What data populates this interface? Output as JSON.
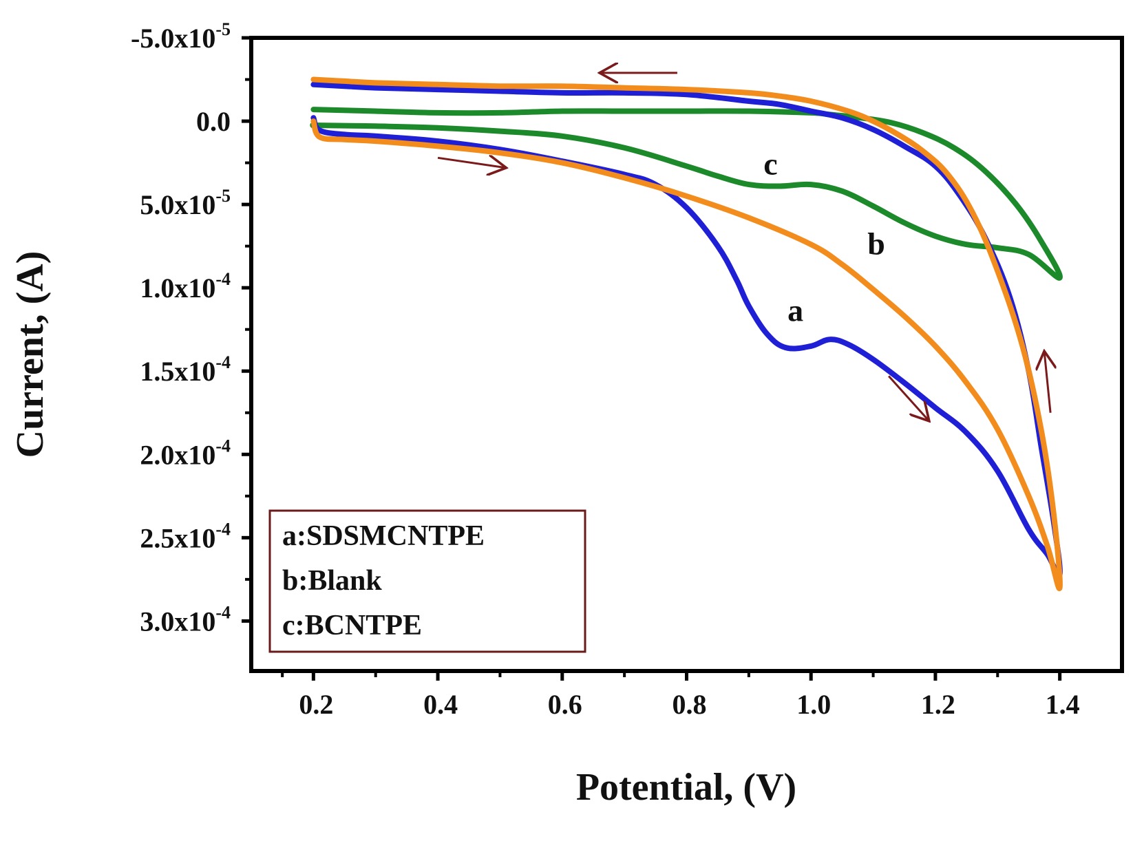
{
  "chart_data": {
    "type": "line",
    "title": "",
    "xlabel": "Potential, (V)",
    "ylabel": "Current, (A)",
    "xlim": [
      0.1,
      1.5
    ],
    "ylim": [
      -5e-05,
      0.00033
    ],
    "y_inverted": true,
    "x_ticks": [
      {
        "value": 0.2,
        "label": "0.2"
      },
      {
        "value": 0.4,
        "label": "0.4"
      },
      {
        "value": 0.6,
        "label": "0.6"
      },
      {
        "value": 0.8,
        "label": "0.8"
      },
      {
        "value": 1.0,
        "label": "1.0"
      },
      {
        "value": 1.2,
        "label": "1.2"
      },
      {
        "value": 1.4,
        "label": "1.4"
      }
    ],
    "y_ticks": [
      {
        "value": -5e-05,
        "mant": "-5.0x10",
        "exp": "-5"
      },
      {
        "value": 0.0,
        "mant": "0.0",
        "exp": ""
      },
      {
        "value": 5e-05,
        "mant": "5.0x10",
        "exp": "-5"
      },
      {
        "value": 0.0001,
        "mant": "1.0x10",
        "exp": "-4"
      },
      {
        "value": 0.00015,
        "mant": "1.5x10",
        "exp": "-4"
      },
      {
        "value": 0.0002,
        "mant": "2.0x10",
        "exp": "-4"
      },
      {
        "value": 0.00025,
        "mant": "2.5x10",
        "exp": "-4"
      },
      {
        "value": 0.0003,
        "mant": "3.0x10",
        "exp": "-4"
      }
    ],
    "series": [
      {
        "name": "a:SDSMCNTPE",
        "label": "a",
        "color": "#1f1fd6",
        "label_point": {
          "x": 0.975,
          "y": 0.00012
        },
        "x": [
          0.2,
          0.21,
          0.25,
          0.3,
          0.4,
          0.5,
          0.6,
          0.7,
          0.75,
          0.8,
          0.85,
          0.88,
          0.9,
          0.93,
          0.96,
          1.0,
          1.03,
          1.06,
          1.1,
          1.15,
          1.2,
          1.25,
          1.3,
          1.35,
          1.38,
          1.4,
          1.39,
          1.37,
          1.35,
          1.32,
          1.28,
          1.24,
          1.2,
          1.15,
          1.1,
          1.05,
          1.0,
          0.95,
          0.9,
          0.8,
          0.7,
          0.6,
          0.5,
          0.4,
          0.3,
          0.25,
          0.2
        ],
        "y": [
          -2e-06,
          5.5e-06,
          8e-06,
          9e-06,
          1.2e-05,
          1.7e-05,
          2.4e-05,
          3.2e-05,
          3.8e-05,
          5.2e-05,
          7.5e-05,
          9.5e-05,
          0.000111,
          0.000128,
          0.000136,
          0.000135,
          0.000131,
          0.000134,
          0.000143,
          0.000157,
          0.000172,
          0.000187,
          0.00021,
          0.000245,
          0.00026,
          0.000272,
          0.00024,
          0.000195,
          0.00015,
          0.000106,
          7e-05,
          4.5e-05,
          2.7e-05,
          1.5e-05,
          5e-06,
          -2e-06,
          -6e-06,
          -1e-05,
          -1.2e-05,
          -1.6e-05,
          -1.7e-05,
          -1.7e-05,
          -1.8e-05,
          -1.9e-05,
          -2e-05,
          -2.1e-05,
          -2.2e-05
        ]
      },
      {
        "name": "b:Blank",
        "label": "b",
        "color": "#f28c1c",
        "label_point": {
          "x": 1.105,
          "y": 8e-05
        },
        "x": [
          0.2,
          0.21,
          0.25,
          0.3,
          0.4,
          0.5,
          0.6,
          0.7,
          0.8,
          0.9,
          1.0,
          1.05,
          1.1,
          1.15,
          1.2,
          1.25,
          1.3,
          1.35,
          1.38,
          1.4,
          1.39,
          1.37,
          1.34,
          1.3,
          1.26,
          1.22,
          1.18,
          1.14,
          1.1,
          1.06,
          1.0,
          0.95,
          0.9,
          0.8,
          0.7,
          0.6,
          0.5,
          0.4,
          0.3,
          0.25,
          0.2
        ],
        "y": [
          0.0,
          9.5e-06,
          1.1e-05,
          1.2e-05,
          1.5e-05,
          1.9e-05,
          2.5e-05,
          3.4e-05,
          4.5e-05,
          5.8e-05,
          7.4e-05,
          8.6e-05,
          0.000101,
          0.000117,
          0.000135,
          0.000157,
          0.000185,
          0.000225,
          0.000255,
          0.00028,
          0.000235,
          0.000185,
          0.000135,
          9e-05,
          5.5e-05,
          3.2e-05,
          1.8e-05,
          8e-06,
          0.0,
          -6e-06,
          -1.2e-05,
          -1.5e-05,
          -1.7e-05,
          -1.9e-05,
          -2e-05,
          -2.1e-05,
          -2.1e-05,
          -2.2e-05,
          -2.3e-05,
          -2.4e-05,
          -2.5e-05
        ]
      },
      {
        "name": "c:BCNTPE",
        "label": "c",
        "color": "#1c8a2a",
        "label_point": {
          "x": 0.935,
          "y": 3.2e-05
        },
        "x": [
          0.2,
          0.21,
          0.3,
          0.4,
          0.5,
          0.6,
          0.7,
          0.8,
          0.85,
          0.9,
          0.95,
          1.0,
          1.05,
          1.1,
          1.15,
          1.2,
          1.25,
          1.3,
          1.35,
          1.4,
          1.37,
          1.33,
          1.28,
          1.23,
          1.18,
          1.13,
          1.08,
          1.03,
          1.0,
          0.9,
          0.8,
          0.7,
          0.6,
          0.5,
          0.4,
          0.3,
          0.2
        ],
        "y": [
          2.5e-06,
          2.5e-06,
          3e-06,
          4e-06,
          6e-06,
          9e-06,
          1.6e-05,
          2.7e-05,
          3.3e-05,
          3.8e-05,
          3.9e-05,
          3.8e-05,
          4.2e-05,
          5.1e-05,
          6.1e-05,
          6.9e-05,
          7.4e-05,
          7.6e-05,
          8e-05,
          9.4e-05,
          7.2e-05,
          5e-05,
          3e-05,
          1.6e-05,
          7e-06,
          1e-06,
          -2e-06,
          -4e-06,
          -5e-06,
          -6e-06,
          -6e-06,
          -6e-06,
          -6e-06,
          -5e-06,
          -5e-06,
          -6e-06,
          -7e-06
        ]
      }
    ],
    "arrows": [
      {
        "from": [
          0.785,
          -2.9e-05
        ],
        "to": [
          0.66,
          -2.9e-05
        ]
      },
      {
        "from": [
          0.4,
          2.2e-05
        ],
        "to": [
          0.51,
          2.8e-05
        ]
      },
      {
        "from": [
          1.125,
          0.000153
        ],
        "to": [
          1.19,
          0.00018
        ]
      },
      {
        "from": [
          1.385,
          0.000175
        ],
        "to": [
          1.375,
          0.000138
        ]
      }
    ],
    "arrow_color": "#7a1a1a",
    "legend_location": "lower-left",
    "legend_border_color": "#6b1a1a",
    "legend": [
      {
        "label": "a:SDSMCNTPE"
      },
      {
        "label": "b:Blank"
      },
      {
        "label": "c:BCNTPE"
      }
    ]
  }
}
